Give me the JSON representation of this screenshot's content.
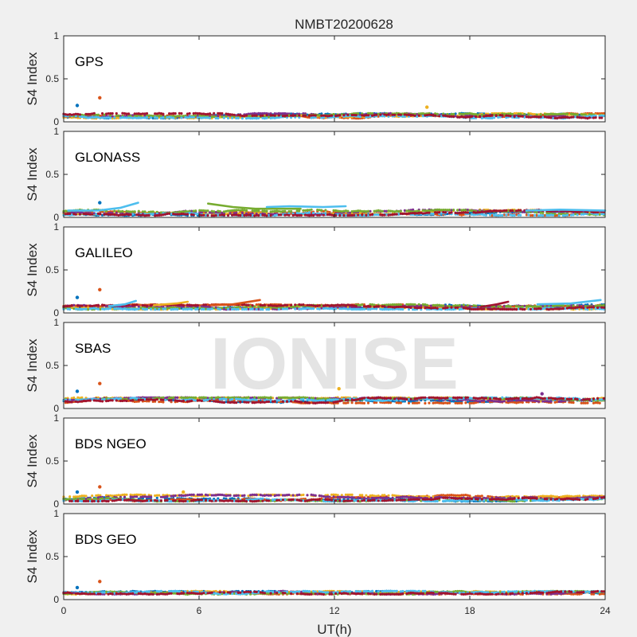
{
  "figure": {
    "title": "NMBT20200628",
    "xlabel": "UT(h)",
    "watermark": "IONISE",
    "background_color": "#f0f0f0"
  },
  "chart_data": {
    "type": "scatter",
    "title": "NMBT20200628",
    "xlabel": "UT(h)",
    "ylabel": "S4 Index",
    "xlim": [
      0,
      24
    ],
    "ylim": [
      0,
      1
    ],
    "xticks": [
      "0",
      "6",
      "12",
      "18",
      "24"
    ],
    "yticks": [
      "0",
      "0.5",
      "1"
    ],
    "grid": false,
    "series_colors": [
      "#0072bd",
      "#d95319",
      "#edb120",
      "#7e2f8e",
      "#77ac30",
      "#4dbeee",
      "#a2142f"
    ],
    "panels": [
      {
        "name": "GPS",
        "typical_s4": [
          0.04,
          0.1
        ],
        "outliers": [
          {
            "x": 0.6,
            "y": 0.19
          },
          {
            "x": 1.6,
            "y": 0.28
          },
          {
            "x": 16.1,
            "y": 0.17
          }
        ],
        "arcs": []
      },
      {
        "name": "GLONASS",
        "typical_s4": [
          0.02,
          0.09
        ],
        "outliers": [
          {
            "x": 1.6,
            "y": 0.17
          }
        ],
        "arcs": [
          {
            "color": 5,
            "points": [
              [
                0.2,
                0.08
              ],
              [
                1.5,
                0.08
              ],
              [
                2.5,
                0.11
              ],
              [
                3.3,
                0.17
              ]
            ]
          },
          {
            "color": 4,
            "points": [
              [
                6.4,
                0.16
              ],
              [
                7.5,
                0.12
              ],
              [
                8.5,
                0.1
              ],
              [
                10.5,
                0.1
              ]
            ]
          },
          {
            "color": 5,
            "points": [
              [
                9.0,
                0.12
              ],
              [
                10.0,
                0.13
              ],
              [
                11.5,
                0.12
              ],
              [
                12.5,
                0.13
              ]
            ]
          },
          {
            "color": 5,
            "points": [
              [
                20.5,
                0.08
              ],
              [
                22.0,
                0.09
              ],
              [
                24.0,
                0.08
              ]
            ]
          }
        ]
      },
      {
        "name": "GALILEO",
        "typical_s4": [
          0.04,
          0.1
        ],
        "outliers": [
          {
            "x": 0.6,
            "y": 0.18
          },
          {
            "x": 1.6,
            "y": 0.27
          }
        ],
        "arcs": [
          {
            "color": 5,
            "points": [
              [
                2.0,
                0.08
              ],
              [
                2.7,
                0.1
              ],
              [
                3.2,
                0.14
              ]
            ]
          },
          {
            "color": 2,
            "points": [
              [
                4.0,
                0.09
              ],
              [
                5.0,
                0.11
              ],
              [
                5.5,
                0.13
              ]
            ]
          },
          {
            "color": 1,
            "points": [
              [
                6.5,
                0.09
              ],
              [
                7.5,
                0.1
              ],
              [
                8.7,
                0.15
              ]
            ]
          },
          {
            "color": 6,
            "points": [
              [
                18.5,
                0.07
              ],
              [
                19.2,
                0.1
              ],
              [
                19.7,
                0.13
              ]
            ]
          },
          {
            "color": 5,
            "points": [
              [
                21.0,
                0.1
              ],
              [
                22.5,
                0.11
              ],
              [
                23.8,
                0.15
              ]
            ]
          }
        ]
      },
      {
        "name": "SBAS",
        "typical_s4": [
          0.06,
          0.13
        ],
        "outliers": [
          {
            "x": 0.6,
            "y": 0.2
          },
          {
            "x": 1.6,
            "y": 0.29
          },
          {
            "x": 12.2,
            "y": 0.23
          },
          {
            "x": 21.2,
            "y": 0.17
          }
        ],
        "arcs": []
      },
      {
        "name": "BDS NGEO",
        "typical_s4": [
          0.03,
          0.11
        ],
        "outliers": [
          {
            "x": 0.6,
            "y": 0.14
          },
          {
            "x": 1.6,
            "y": 0.2
          },
          {
            "x": 5.3,
            "y": 0.14
          }
        ],
        "arcs": []
      },
      {
        "name": "BDS GEO",
        "typical_s4": [
          0.06,
          0.1
        ],
        "outliers": [
          {
            "x": 0.6,
            "y": 0.14
          },
          {
            "x": 1.6,
            "y": 0.21
          }
        ],
        "arcs": []
      }
    ]
  }
}
